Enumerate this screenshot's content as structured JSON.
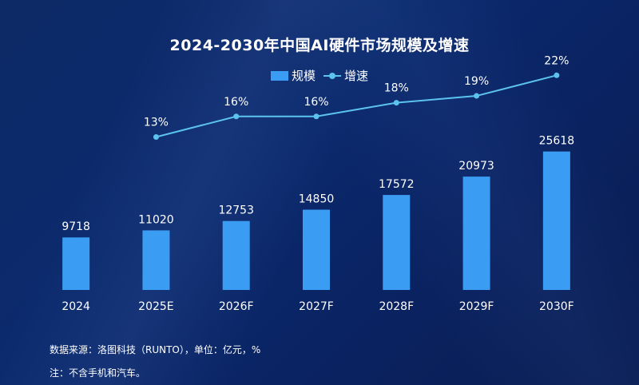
{
  "chart_data": {
    "type": "bar",
    "title": "2024-2030年中国AI硬件市场规模及增速",
    "categories": [
      "2024",
      "2025E",
      "2026F",
      "2027F",
      "2028F",
      "2029F",
      "2030F"
    ],
    "series": [
      {
        "name": "规模",
        "kind": "bar",
        "values": [
          9718,
          11020,
          12753,
          14850,
          17572,
          20973,
          25618
        ],
        "labels": [
          "9718",
          "11020",
          "12753",
          "14850",
          "17572",
          "20973",
          "25618"
        ]
      },
      {
        "name": "增速",
        "kind": "line",
        "values": [
          null,
          13,
          16,
          16,
          18,
          19,
          22
        ],
        "labels": [
          "",
          "13%",
          "16%",
          "16%",
          "18%",
          "19%",
          "22%"
        ]
      }
    ],
    "bar_ylim": [
      0,
      30000
    ],
    "line_ylim": [
      0,
      26
    ],
    "colors": {
      "bar": "#3a9cf2",
      "line": "#5cc3ee",
      "text": "#ffffff"
    }
  },
  "notes": {
    "source": "数据来源：洛图科技（RUNTO），单位：亿元，%",
    "remark": "注：不含手机和汽车。"
  }
}
